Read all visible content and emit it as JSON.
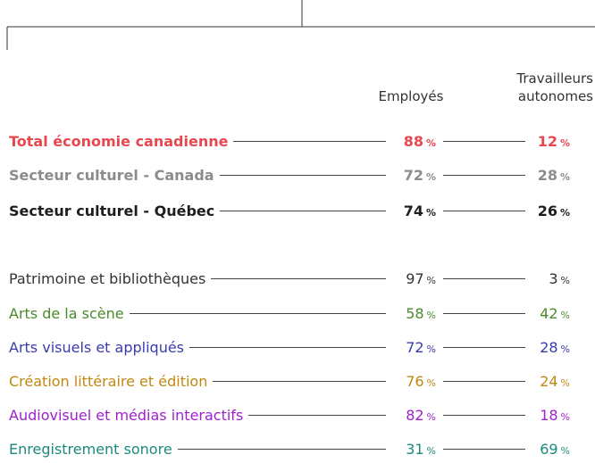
{
  "columns": [
    "Employés",
    "Travailleurs autonomes"
  ],
  "unit": "%",
  "groups": [
    {
      "rows": [
        {
          "label": "Total économie canadienne",
          "employes": 88,
          "autonomes": 12,
          "color": "#e8474f",
          "bold": true
        },
        {
          "label": "Secteur culturel - Canada",
          "employes": 72,
          "autonomes": 28,
          "color": "#8c8c8c",
          "bold": true
        },
        {
          "label": "Secteur culturel - Québec",
          "employes": 74,
          "autonomes": 26,
          "color": "#1e1e1e",
          "bold": true
        }
      ]
    },
    {
      "rows": [
        {
          "label": "Patrimoine et bibliothèques",
          "employes": 97,
          "autonomes": 3,
          "color": "#333333",
          "bold": false
        },
        {
          "label": "Arts de la scène",
          "employes": 58,
          "autonomes": 42,
          "color": "#4a8a2a",
          "bold": false
        },
        {
          "label": "Arts visuels et appliqués",
          "employes": 72,
          "autonomes": 28,
          "color": "#3b3bb0",
          "bold": false
        },
        {
          "label": "Création littéraire et édition",
          "employes": 76,
          "autonomes": 24,
          "color": "#c0880f",
          "bold": false
        },
        {
          "label": "Audiovisuel et médias interactifs",
          "employes": 82,
          "autonomes": 18,
          "color": "#a020d0",
          "bold": false
        },
        {
          "label": "Enregistrement sonore",
          "employes": 31,
          "autonomes": 69,
          "color": "#1a8a7a",
          "bold": false
        }
      ]
    }
  ]
}
